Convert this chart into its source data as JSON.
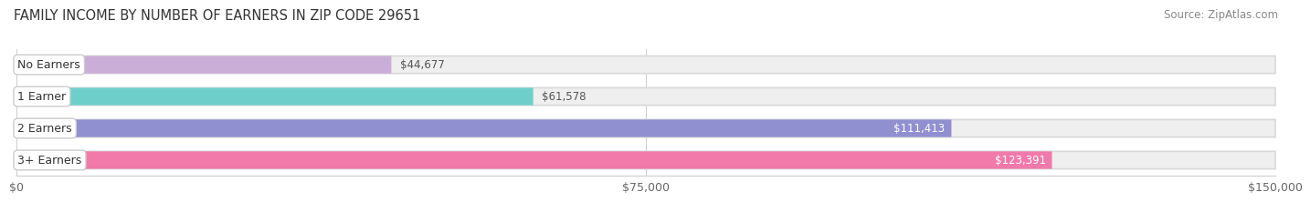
{
  "title": "FAMILY INCOME BY NUMBER OF EARNERS IN ZIP CODE 29651",
  "source": "Source: ZipAtlas.com",
  "categories": [
    "No Earners",
    "1 Earner",
    "2 Earners",
    "3+ Earners"
  ],
  "values": [
    44677,
    61578,
    111413,
    123391
  ],
  "bar_colors": [
    "#cbaed8",
    "#6ecfca",
    "#9090d0",
    "#f07aaa"
  ],
  "value_labels": [
    "$44,677",
    "$61,578",
    "$111,413",
    "$123,391"
  ],
  "xmax": 150000,
  "xticks": [
    0,
    75000,
    150000
  ],
  "xtick_labels": [
    "$0",
    "$75,000",
    "$150,000"
  ],
  "fig_bg_color": "#ffffff",
  "bar_bg_fill": "#efefef",
  "title_fontsize": 10.5,
  "source_fontsize": 8.5,
  "label_fontsize": 9,
  "value_fontsize": 8.5,
  "value_inside_color": "#ffffff",
  "value_outside_color": "#555555",
  "inside_threshold": 0.55
}
